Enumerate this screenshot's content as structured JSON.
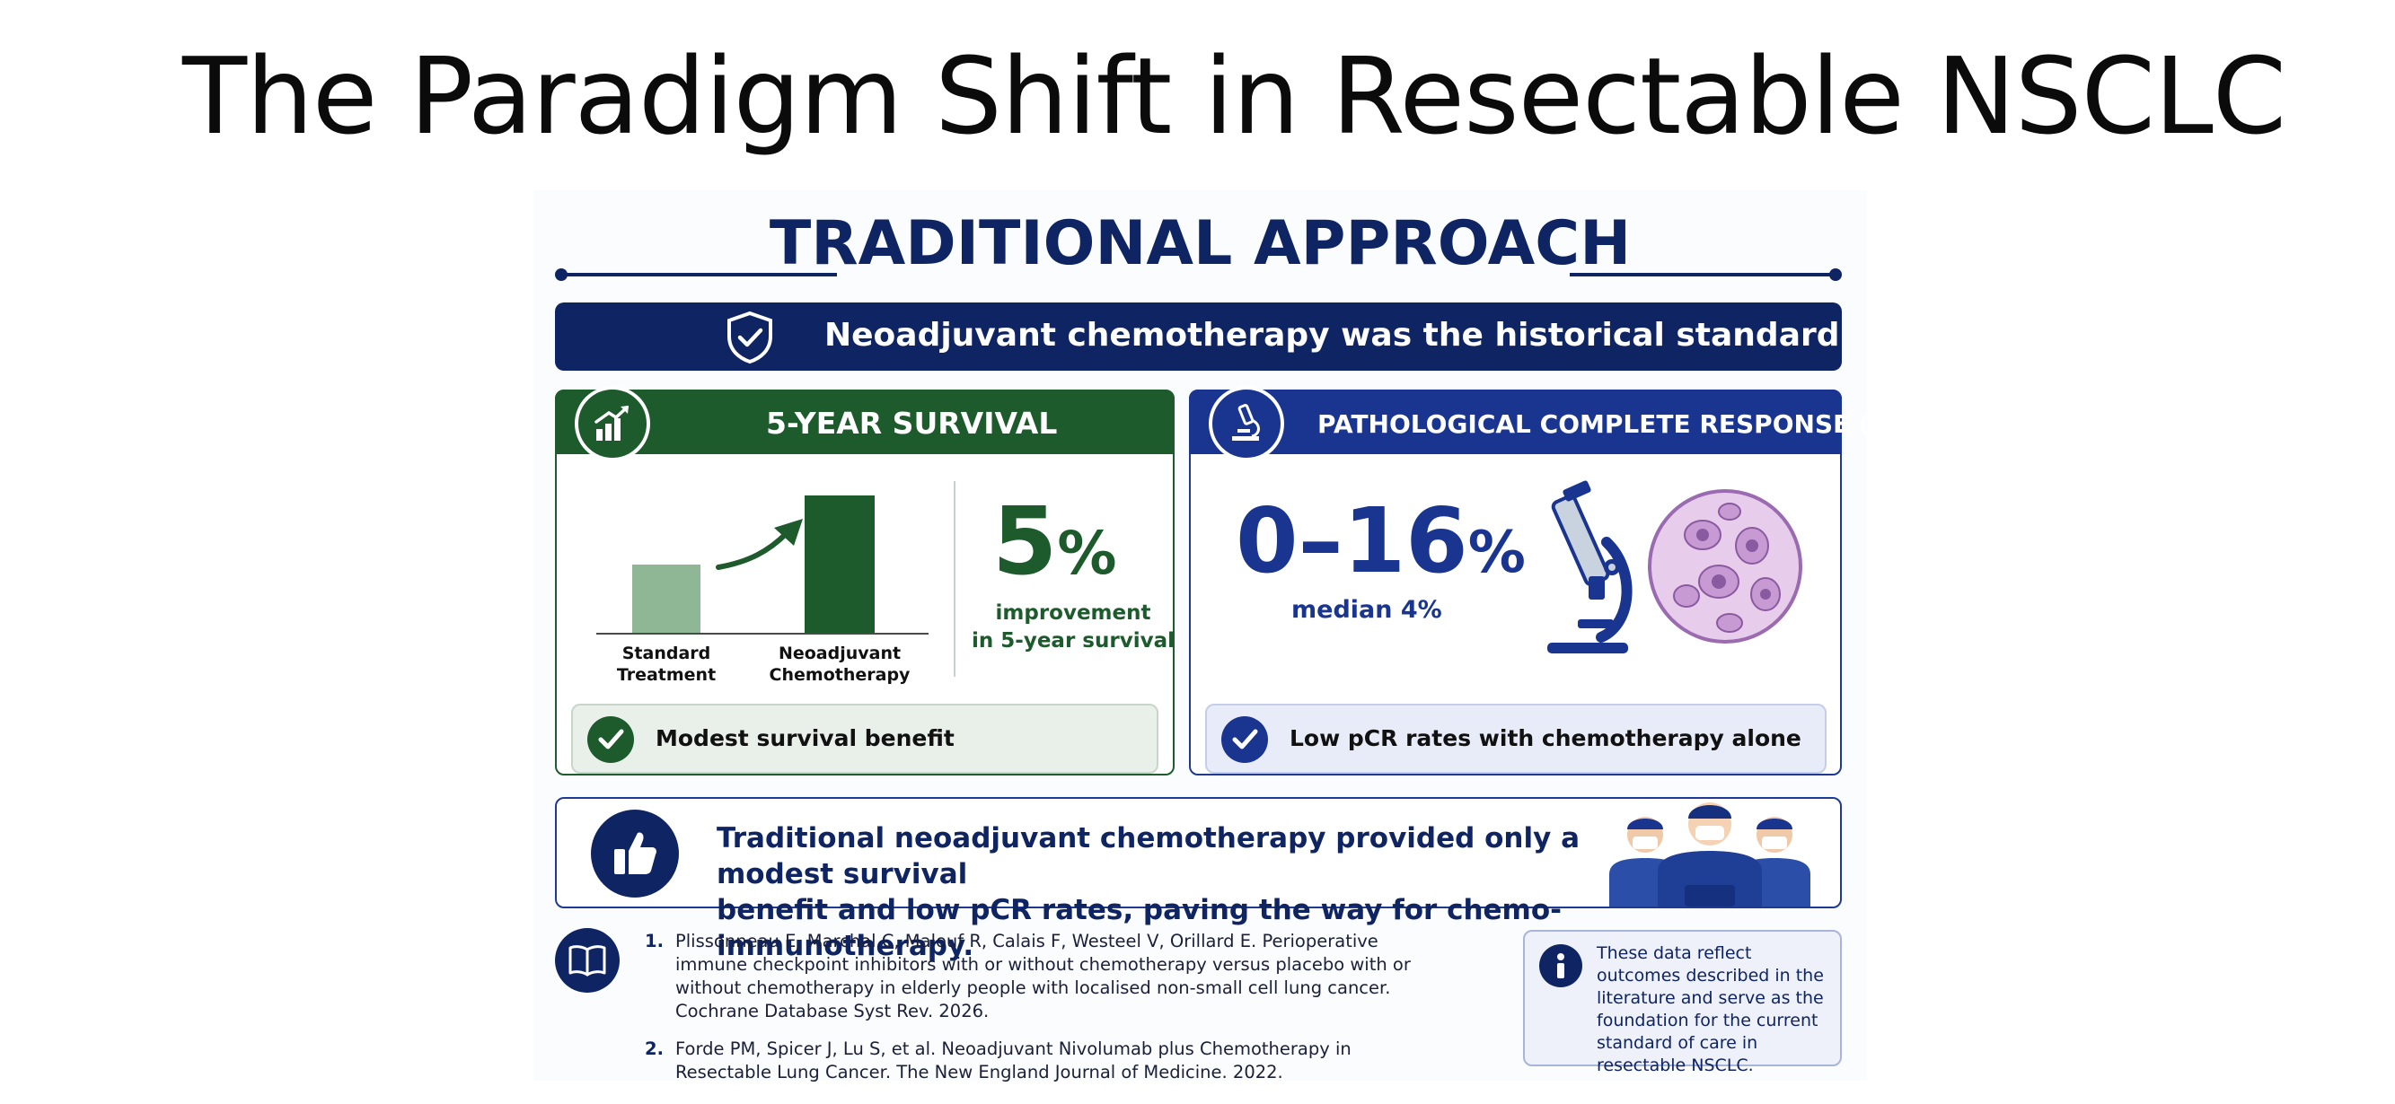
{
  "slide_title": "The Paradigm Shift in Resectable NSCLC",
  "infographic": {
    "header": "TRADITIONAL APPROACH",
    "banner": "Neoadjuvant chemotherapy was the historical standard",
    "survival_card": {
      "title": "5-YEAR SURVIVAL",
      "bars": [
        {
          "label_line1": "Standard",
          "label_line2": "Treatment",
          "relative_height": 0.5
        },
        {
          "label_line1": "Neoadjuvant",
          "label_line2": "Chemotherapy",
          "relative_height": 1.0
        }
      ],
      "stat_value": "5",
      "stat_unit": "%",
      "stat_caption_line1": "improvement",
      "stat_caption_line2": "in 5-year survival",
      "note": "Modest survival benefit",
      "colors": {
        "primary": "#1d5a2c",
        "light_bar": "#8fb795"
      }
    },
    "pcr_card": {
      "title": "PATHOLOGICAL COMPLETE RESPONSE (pCR)",
      "stat_value": "0–16",
      "stat_unit": "%",
      "stat_caption": "median 4%",
      "note": "Low pCR rates with chemotherapy alone",
      "colors": {
        "primary": "#1a3590"
      }
    },
    "takeaway": {
      "line1": "Traditional neoadjuvant chemotherapy provided only a modest survival",
      "line2": "benefit and low pCR rates, paving the way for chemo-immunotherapy."
    },
    "references": [
      {
        "num": "1.",
        "text": "Plissonneau E, Marchal C, Malouf R, Calais F, Westeel V, Orillard E. Perioperative immune checkpoint inhibitors with or without chemotherapy versus placebo with or without chemotherapy in elderly people with localised non-small cell lung cancer. Cochrane Database Syst Rev. 2026."
      },
      {
        "num": "2.",
        "text": "Forde PM, Spicer J, Lu S, et al. Neoadjuvant Nivolumab plus Chemotherapy in Resectable Lung Cancer. The New England Journal of Medicine. 2022."
      }
    ],
    "info_note": "These data reflect outcomes described in the literature and serve as the foundation for the current standard of care in resectable NSCLC.",
    "icons": [
      "shield-check-icon",
      "growth-chart-icon",
      "microscope-icon",
      "check-icon",
      "thumbs-up-icon",
      "surgeons-illustration",
      "book-icon",
      "info-icon",
      "cell-illustration"
    ],
    "colors": {
      "navy": "#0f2462",
      "green": "#1d5a2c",
      "blue": "#1a3590"
    }
  }
}
